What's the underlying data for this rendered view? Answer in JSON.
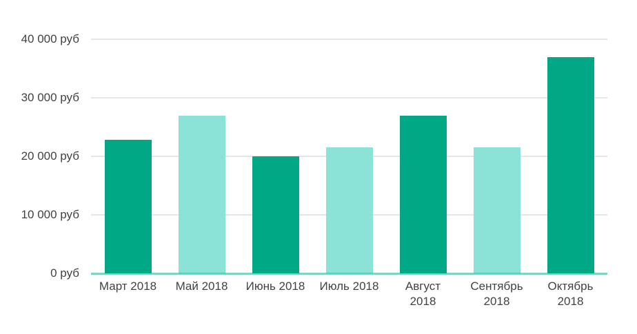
{
  "chart_data": {
    "type": "bar",
    "categories": [
      "Март 2018",
      "Май 2018",
      "Июнь 2018",
      "Июль 2018",
      "Август 2018",
      "Сентябрь 2018",
      "Октябрь 2018"
    ],
    "category_label_lines": [
      [
        "Март 2018"
      ],
      [
        "Май 2018"
      ],
      [
        "Июнь 2018"
      ],
      [
        "Июль 2018"
      ],
      [
        "Август",
        "2018"
      ],
      [
        "Сентябрь",
        "2018"
      ],
      [
        "Октябрь",
        "2018"
      ]
    ],
    "values": [
      22800,
      27000,
      20000,
      21500,
      27000,
      21500,
      37000
    ],
    "unit": "руб",
    "bar_colors": [
      "#00a886",
      "#8be2d6",
      "#00a886",
      "#8be2d6",
      "#00a886",
      "#8be2d6",
      "#00a886"
    ],
    "y_ticks": [
      {
        "value": 40000,
        "label": "40 000 руб"
      },
      {
        "value": 30000,
        "label": "30 000 руб"
      },
      {
        "value": 20000,
        "label": "20 000 руб"
      },
      {
        "value": 10000,
        "label": "10 000 руб"
      },
      {
        "value": 0,
        "label": "0 руб"
      }
    ],
    "ylim": [
      0,
      40000
    ],
    "xlabel": "",
    "ylabel": "",
    "grid": "horizontal",
    "legend": "none",
    "colors": {
      "bar_dark": "#00a886",
      "bar_light": "#8be2d6",
      "gridline": "#e6e6e6",
      "axis_line": "rgba(0,168,132,0.5)",
      "text": "#424242",
      "background": "#ffffff"
    }
  }
}
